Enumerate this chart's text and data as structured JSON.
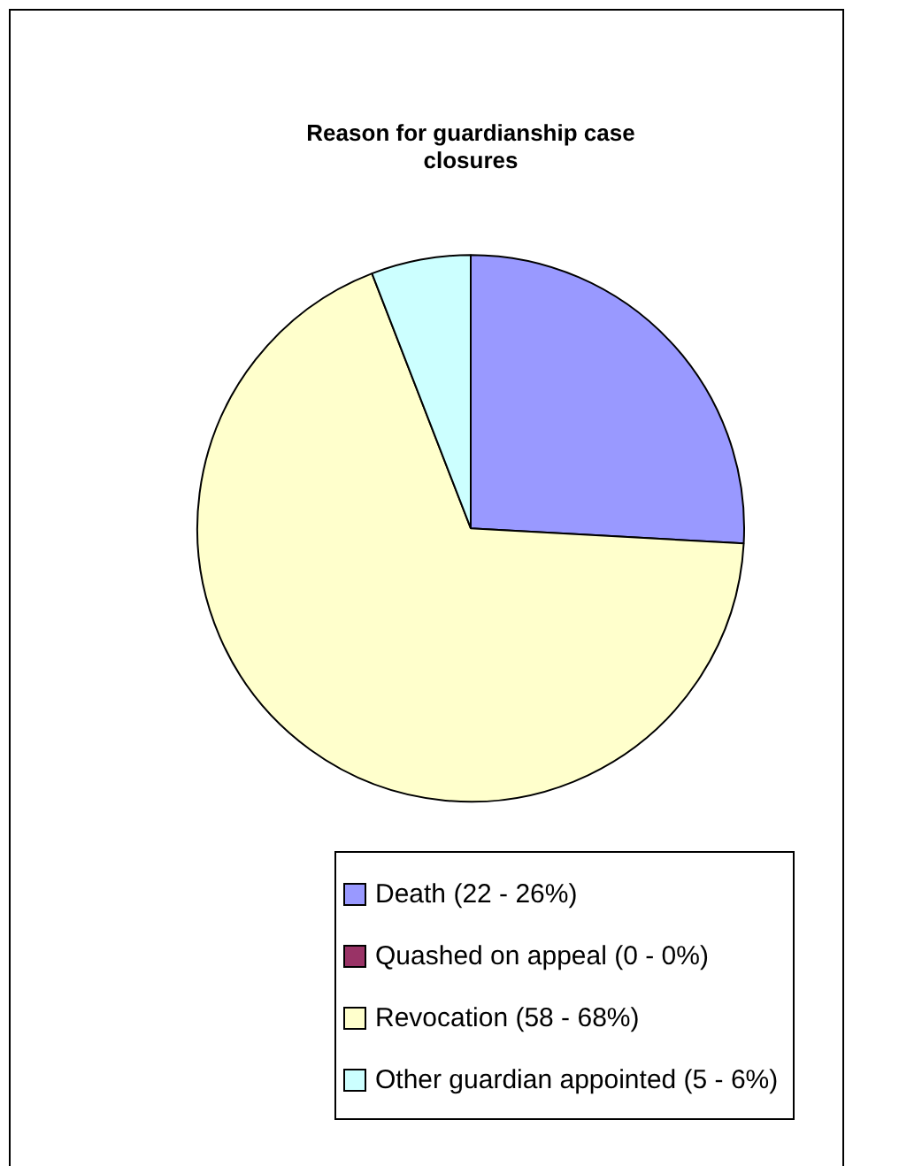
{
  "chart_data": {
    "type": "pie",
    "title": "Reason for guardianship case closures",
    "categories": [
      "Death (22 - 26%)",
      "Quashed on appeal (0 - 0%)",
      "Revocation (58 - 68%)",
      "Other guardian appointed (5 - 6%)"
    ],
    "values": [
      22,
      0,
      58,
      5
    ],
    "colors": [
      "#9999ff",
      "#993366",
      "#ffffcc",
      "#ccffff"
    ],
    "legend": "bottom"
  }
}
